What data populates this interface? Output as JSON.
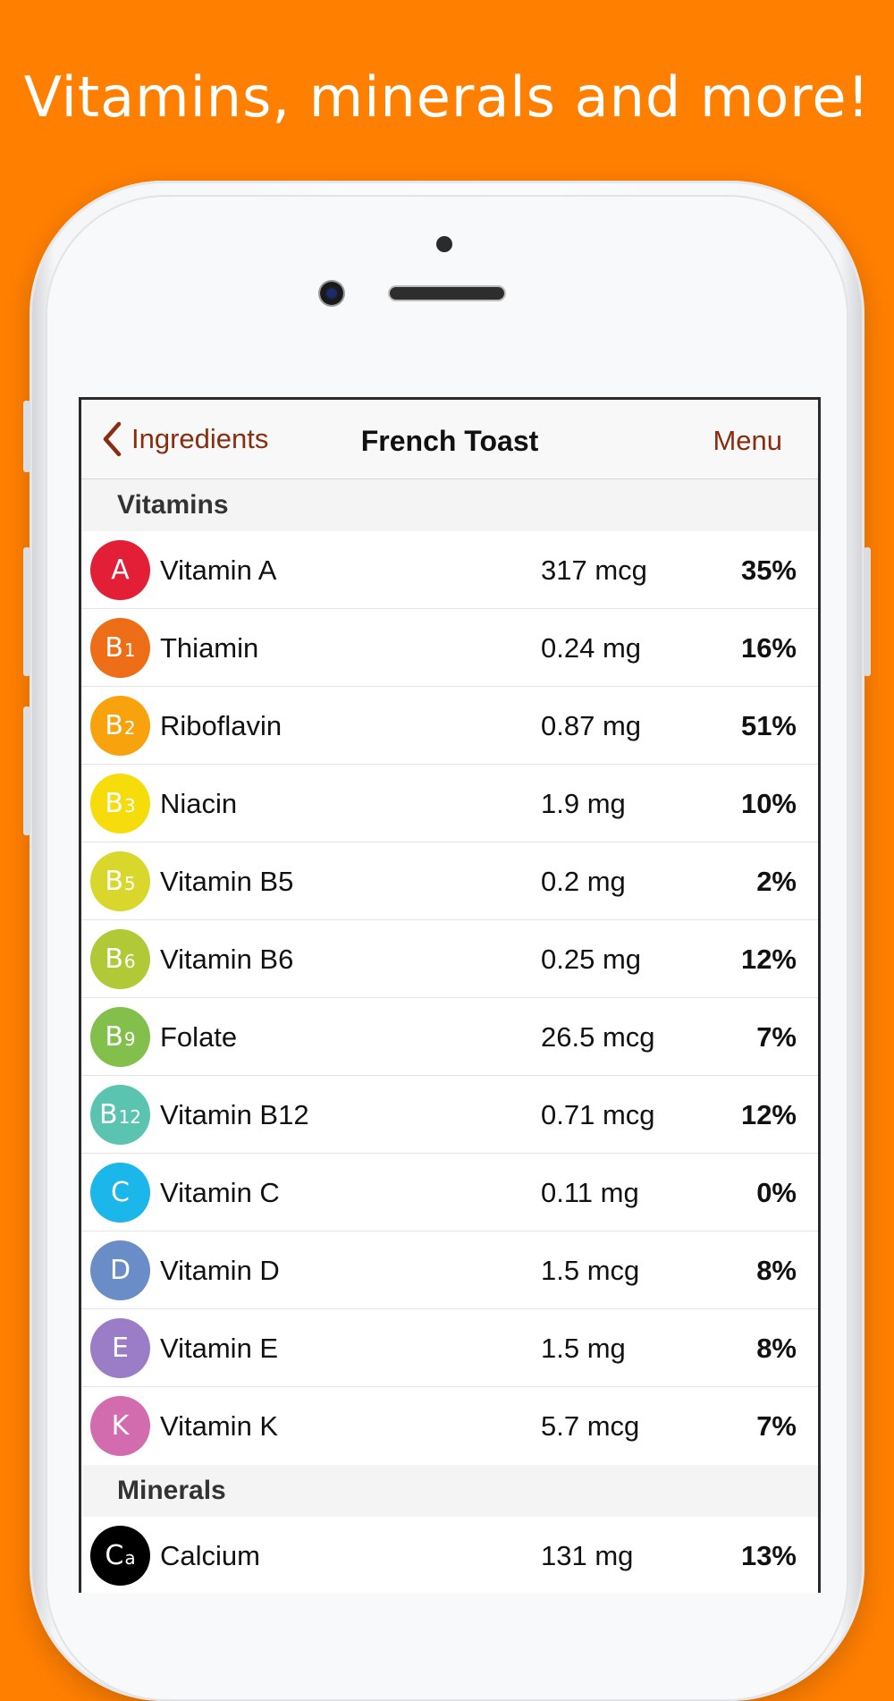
{
  "headline": "Vitamins, minerals and more!",
  "nav": {
    "back_label": "Ingredients",
    "title": "French Toast",
    "menu_label": "Menu"
  },
  "sections": {
    "vitamins": {
      "title": "Vitamins",
      "items": [
        {
          "symbol": "A",
          "sub": "",
          "name": "Vitamin A",
          "amount": "317 mcg",
          "percent": "35%",
          "color": "#E21F36"
        },
        {
          "symbol": "B",
          "sub": "1",
          "name": "Thiamin",
          "amount": "0.24 mg",
          "percent": "16%",
          "color": "#EE6E17"
        },
        {
          "symbol": "B",
          "sub": "2",
          "name": "Riboflavin",
          "amount": "0.87 mg",
          "percent": "51%",
          "color": "#F8A30D"
        },
        {
          "symbol": "B",
          "sub": "3",
          "name": "Niacin",
          "amount": "1.9 mg",
          "percent": "10%",
          "color": "#F5DC0A"
        },
        {
          "symbol": "B",
          "sub": "5",
          "name": "Vitamin B5",
          "amount": "0.2 mg",
          "percent": "2%",
          "color": "#D9D72B"
        },
        {
          "symbol": "B",
          "sub": "6",
          "name": "Vitamin B6",
          "amount": "0.25 mg",
          "percent": "12%",
          "color": "#B1C936"
        },
        {
          "symbol": "B",
          "sub": "9",
          "name": "Folate",
          "amount": "26.5 mcg",
          "percent": "7%",
          "color": "#83BF4B"
        },
        {
          "symbol": "B",
          "sub": "12",
          "name": "Vitamin B12",
          "amount": "0.71 mcg",
          "percent": "12%",
          "color": "#5BC4B0"
        },
        {
          "symbol": "C",
          "sub": "",
          "name": "Vitamin C",
          "amount": "0.11 mg",
          "percent": "0%",
          "color": "#1BB6EA"
        },
        {
          "symbol": "D",
          "sub": "",
          "name": "Vitamin D",
          "amount": "1.5 mcg",
          "percent": "8%",
          "color": "#6A8DC8"
        },
        {
          "symbol": "E",
          "sub": "",
          "name": "Vitamin E",
          "amount": "1.5 mg",
          "percent": "8%",
          "color": "#9B7CC7"
        },
        {
          "symbol": "K",
          "sub": "",
          "name": "Vitamin K",
          "amount": "5.7 mcg",
          "percent": "7%",
          "color": "#D26CAE"
        }
      ]
    },
    "minerals": {
      "title": "Minerals",
      "items": [
        {
          "symbol": "C",
          "sub": "a",
          "name": "Calcium",
          "amount": "131 mg",
          "percent": "13%",
          "color": "#000000"
        }
      ]
    }
  },
  "icons": {
    "back": "chevron-left-icon"
  }
}
